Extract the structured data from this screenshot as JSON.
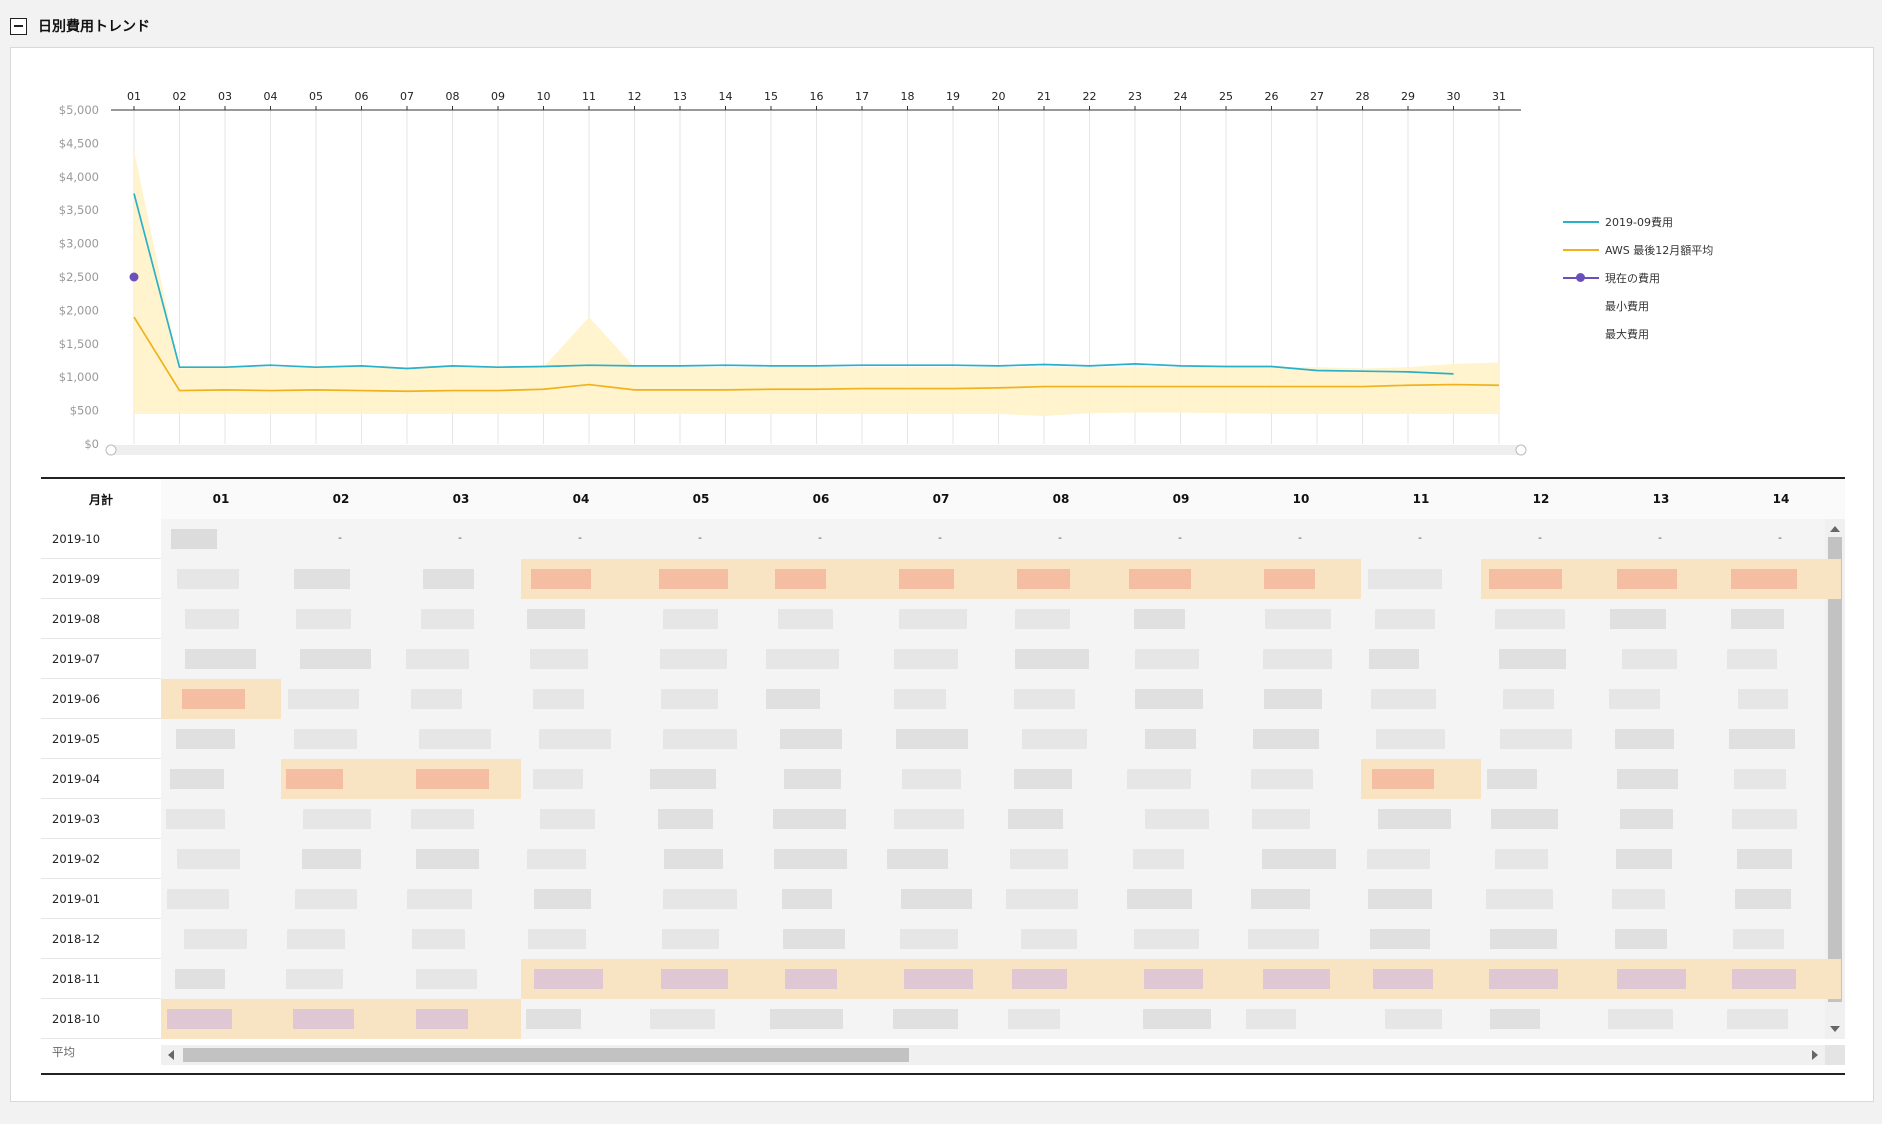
{
  "panel": {
    "title": "日別費用トレンド"
  },
  "chart_data": {
    "type": "line",
    "x": [
      "01",
      "02",
      "03",
      "04",
      "05",
      "06",
      "07",
      "08",
      "09",
      "10",
      "11",
      "12",
      "13",
      "14",
      "15",
      "16",
      "17",
      "18",
      "19",
      "20",
      "21",
      "22",
      "23",
      "24",
      "25",
      "26",
      "27",
      "28",
      "29",
      "30",
      "31"
    ],
    "y_ticks": [
      "$0",
      "$500",
      "$1,000",
      "$1,500",
      "$2,000",
      "$2,500",
      "$3,000",
      "$3,500",
      "$4,000",
      "$4,500",
      "$5,000"
    ],
    "ylim": [
      0,
      5000
    ],
    "series": [
      {
        "name": "2019-09費用",
        "color": "#2ab0c8",
        "values": [
          3750,
          1150,
          1150,
          1180,
          1150,
          1170,
          1130,
          1170,
          1150,
          1160,
          1180,
          1170,
          1170,
          1180,
          1170,
          1170,
          1180,
          1180,
          1180,
          1170,
          1190,
          1170,
          1200,
          1170,
          1160,
          1160,
          1100,
          1090,
          1080,
          1050,
          null
        ]
      },
      {
        "name": "AWS 最後12月額平均",
        "color": "#f0b21c",
        "values": [
          1900,
          800,
          810,
          800,
          810,
          800,
          790,
          800,
          800,
          820,
          890,
          810,
          810,
          810,
          820,
          820,
          830,
          830,
          830,
          840,
          860,
          860,
          860,
          860,
          860,
          860,
          860,
          860,
          880,
          890,
          880
        ]
      },
      {
        "name": "現在の費用",
        "color": "#6b4fbb",
        "values": [
          2500,
          null,
          null,
          null,
          null,
          null,
          null,
          null,
          null,
          null,
          null,
          null,
          null,
          null,
          null,
          null,
          null,
          null,
          null,
          null,
          null,
          null,
          null,
          null,
          null,
          null,
          null,
          null,
          null,
          null,
          null
        ]
      },
      {
        "name": "最小費用",
        "color": "#fff2c6",
        "values": [
          450,
          450,
          450,
          450,
          450,
          450,
          450,
          450,
          450,
          450,
          450,
          450,
          450,
          450,
          450,
          450,
          450,
          450,
          450,
          450,
          420,
          460,
          470,
          470,
          460,
          450,
          450,
          450,
          450,
          450,
          450
        ]
      },
      {
        "name": "最大費用",
        "color": "#fff2c6",
        "values": [
          4400,
          1130,
          1150,
          1150,
          1150,
          1150,
          1150,
          1150,
          1150,
          1150,
          1900,
          1150,
          1150,
          1150,
          1150,
          1150,
          1150,
          1150,
          1150,
          1150,
          1150,
          1150,
          1150,
          1150,
          1150,
          1150,
          1150,
          1130,
          1150,
          1200,
          1220
        ]
      }
    ],
    "grid": true,
    "legend": "right"
  },
  "table": {
    "header_label": "月計",
    "days": [
      "01",
      "02",
      "03",
      "04",
      "05",
      "06",
      "07",
      "08",
      "09",
      "10",
      "11",
      "12",
      "13",
      "14"
    ],
    "months": [
      "2019-10",
      "2019-09",
      "2019-08",
      "2019-07",
      "2019-06",
      "2019-05",
      "2019-04",
      "2019-03",
      "2019-02",
      "2019-01",
      "2018-12",
      "2018-11",
      "2018-10"
    ],
    "footer_label": "平均",
    "dash": "-"
  }
}
